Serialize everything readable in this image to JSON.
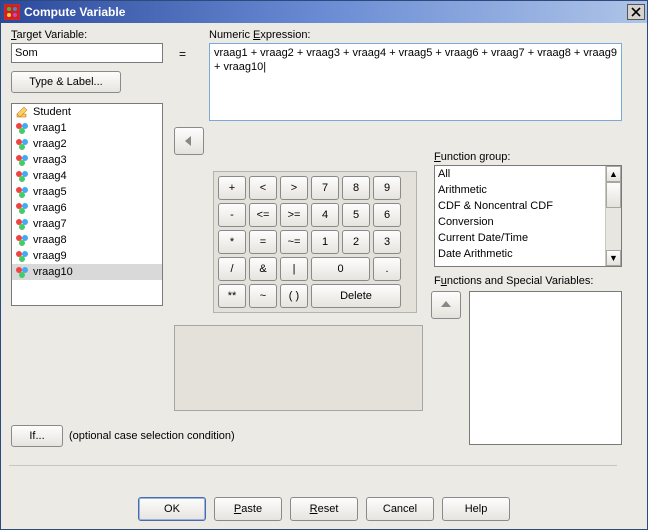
{
  "window": {
    "title": "Compute Variable"
  },
  "labels": {
    "target_variable": "Target Variable:",
    "numeric_expression": "Numeric Expression:",
    "type_label": "Type & Label...",
    "function_group": "Function group:",
    "functions_special": "Functions and Special Variables:",
    "if_hint": "(optional case selection condition)",
    "equals": "="
  },
  "target": {
    "value": "Som"
  },
  "expression": {
    "value": "vraag1 + vraag2 + vraag3 + vraag4 + vraag5 + vraag6 + vraag7 + vraag8 + vraag9 + vraag10|"
  },
  "variables": [
    {
      "name": "Student",
      "icon": "pencil"
    },
    {
      "name": "vraag1",
      "icon": "circles"
    },
    {
      "name": "vraag2",
      "icon": "circles"
    },
    {
      "name": "vraag3",
      "icon": "circles"
    },
    {
      "name": "vraag4",
      "icon": "circles"
    },
    {
      "name": "vraag5",
      "icon": "circles"
    },
    {
      "name": "vraag6",
      "icon": "circles"
    },
    {
      "name": "vraag7",
      "icon": "circles"
    },
    {
      "name": "vraag8",
      "icon": "circles"
    },
    {
      "name": "vraag9",
      "icon": "circles"
    },
    {
      "name": "vraag10",
      "icon": "circles",
      "selected": true
    }
  ],
  "keypad": {
    "rows": [
      [
        "+",
        "<",
        ">",
        "7",
        "8",
        "9"
      ],
      [
        "-",
        "<=",
        ">=",
        "4",
        "5",
        "6"
      ],
      [
        "*",
        "=",
        "~=",
        "1",
        "2",
        "3"
      ],
      [
        "/",
        "&",
        "|",
        "0:wide2",
        "."
      ],
      [
        "**",
        "~",
        "( )",
        "Delete:wide3"
      ]
    ]
  },
  "function_groups": [
    "All",
    "Arithmetic",
    "CDF & Noncentral CDF",
    "Conversion",
    "Current Date/Time",
    "Date Arithmetic"
  ],
  "buttons": {
    "if": "If...",
    "ok": "OK",
    "paste": "Paste",
    "reset": "Reset",
    "cancel": "Cancel",
    "help": "Help"
  },
  "colors": {
    "window_bg": "#eceae5",
    "titlebar_start": "#2c4a9c",
    "titlebar_end": "#aec4e8",
    "field_border": "#7a7a7a",
    "expr_border": "#7aa8d8"
  }
}
